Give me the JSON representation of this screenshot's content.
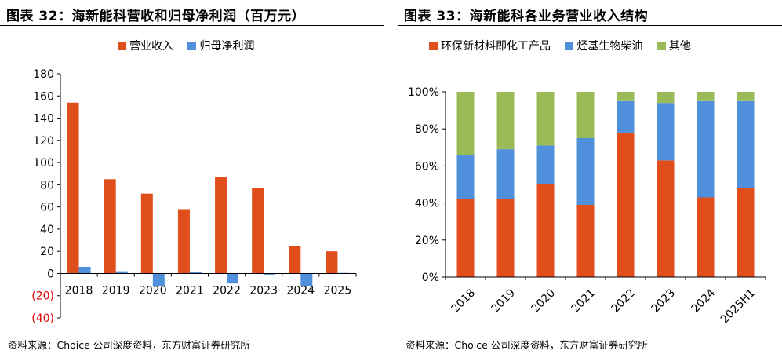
{
  "left": {
    "title": "图表 32：海新能科营收和归母净利润（百万元）",
    "source": "资料来源：Choice 公司深度资料，东方财富证券研究所",
    "chart_data": {
      "type": "bar",
      "categories": [
        "2018",
        "2019",
        "2020",
        "2021",
        "2022",
        "2023",
        "2024",
        "2025"
      ],
      "series": [
        {
          "name": "营业收入",
          "color": "#E04E1B",
          "values": [
            154,
            85,
            72,
            58,
            87,
            77,
            25,
            20
          ]
        },
        {
          "name": "归母净利润",
          "color": "#4F8FDB",
          "values": [
            6,
            2,
            -11,
            1,
            -9,
            -1,
            -11,
            0.5
          ]
        }
      ],
      "ylim": [
        -40,
        180
      ],
      "yticks": [
        -40,
        -20,
        0,
        20,
        40,
        60,
        80,
        100,
        120,
        140,
        160,
        180
      ],
      "ytick_labels": [
        "(40)",
        "(20)",
        "0",
        "20",
        "40",
        "60",
        "80",
        "100",
        "120",
        "140",
        "160",
        "180"
      ],
      "negative_tick_color": "#E00000",
      "legend_position": "top-center",
      "grid": false
    }
  },
  "right": {
    "title": "图表 33：海新能科各业务营业收入结构",
    "source": "资料来源：Choice 公司深度资料，东方财富证券研究所",
    "chart_data": {
      "type": "bar",
      "stacked": true,
      "categories": [
        "2018",
        "2019",
        "2020",
        "2021",
        "2022",
        "2023",
        "2024",
        "2025H1"
      ],
      "series": [
        {
          "name": "环保新材料即化工产品",
          "color": "#E04E1B",
          "values": [
            42,
            42,
            50,
            39,
            78,
            63,
            43,
            48
          ]
        },
        {
          "name": "烃基生物柴油",
          "color": "#4F8FDB",
          "values": [
            24,
            27,
            21,
            36,
            17,
            31,
            52,
            47
          ]
        },
        {
          "name": "其他",
          "color": "#9BBB59",
          "values": [
            34,
            31,
            29,
            25,
            5,
            6,
            5,
            5
          ]
        }
      ],
      "ylim": [
        0,
        100
      ],
      "yticks": [
        0,
        20,
        40,
        60,
        80,
        100
      ],
      "ytick_labels": [
        "0%",
        "20%",
        "40%",
        "60%",
        "80%",
        "100%"
      ],
      "legend_position": "top-center",
      "grid": false
    }
  }
}
